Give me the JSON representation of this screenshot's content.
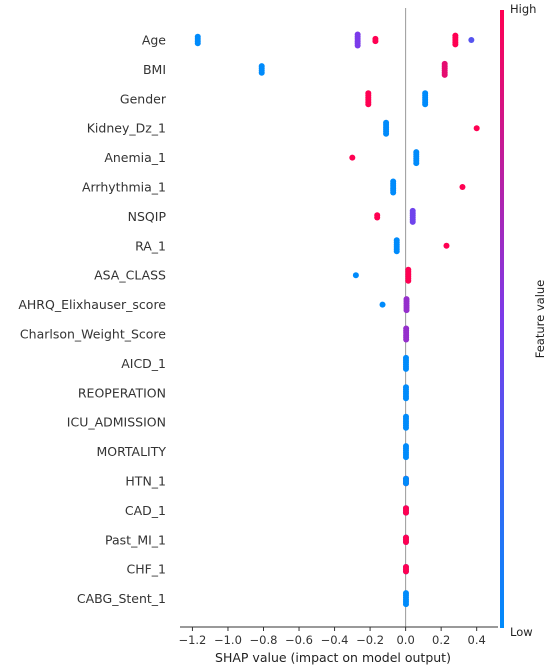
{
  "chart_data": {
    "type": "scatter",
    "xlabel": "SHAP value (impact on model output)",
    "xlim": [
      -1.27,
      0.52
    ],
    "xticks": [
      -1.2,
      -1.0,
      -0.8,
      -0.6,
      -0.4,
      -0.2,
      0.0,
      0.2,
      0.4
    ],
    "xtick_labels": [
      "−1.2",
      "−1.0",
      "−0.8",
      "−0.6",
      "−0.4",
      "−0.2",
      "0.0",
      "0.2",
      "0.4"
    ],
    "colorbar": {
      "label": "Feature value",
      "high": "High",
      "low": "Low",
      "low_color": "#008bfb",
      "mid_color": "#7b3bea",
      "high_color": "#ff0052"
    },
    "zero_line_color": "#999999",
    "features": [
      {
        "name": "Age",
        "points": [
          {
            "x": -1.17,
            "v": 0.0,
            "n": 4
          },
          {
            "x": -0.27,
            "v": 0.5,
            "n": 6
          },
          {
            "x": -0.17,
            "v": 1.0,
            "n": 2
          },
          {
            "x": 0.28,
            "v": 1.0,
            "n": 5
          },
          {
            "x": 0.37,
            "v": 0.35,
            "n": 1
          }
        ]
      },
      {
        "name": "BMI",
        "points": [
          {
            "x": -0.81,
            "v": 0.0,
            "n": 4
          },
          {
            "x": 0.22,
            "v": 0.9,
            "n": 6
          }
        ]
      },
      {
        "name": "Gender",
        "points": [
          {
            "x": -0.21,
            "v": 1.0,
            "n": 6
          },
          {
            "x": 0.11,
            "v": 0.0,
            "n": 6
          }
        ]
      },
      {
        "name": "Kidney_Dz_1",
        "points": [
          {
            "x": -0.11,
            "v": 0.0,
            "n": 6
          },
          {
            "x": 0.4,
            "v": 1.0,
            "n": 1
          }
        ]
      },
      {
        "name": "Anemia_1",
        "points": [
          {
            "x": -0.3,
            "v": 1.0,
            "n": 1
          },
          {
            "x": 0.06,
            "v": 0.0,
            "n": 6
          }
        ]
      },
      {
        "name": "Arrhythmia_1",
        "points": [
          {
            "x": -0.07,
            "v": 0.0,
            "n": 6
          },
          {
            "x": 0.32,
            "v": 1.0,
            "n": 1
          }
        ]
      },
      {
        "name": "NSQIP",
        "points": [
          {
            "x": -0.16,
            "v": 1.0,
            "n": 2
          },
          {
            "x": 0.04,
            "v": 0.45,
            "n": 6
          }
        ]
      },
      {
        "name": "RA_1",
        "points": [
          {
            "x": -0.05,
            "v": 0.0,
            "n": 6
          },
          {
            "x": 0.23,
            "v": 1.0,
            "n": 1
          }
        ]
      },
      {
        "name": "ASA_CLASS",
        "points": [
          {
            "x": -0.28,
            "v": 0.0,
            "n": 1
          },
          {
            "x": 0.015,
            "v": 1.0,
            "n": 6
          }
        ]
      },
      {
        "name": "AHRQ_Elixhauser_score",
        "points": [
          {
            "x": -0.13,
            "v": 0.0,
            "n": 1
          },
          {
            "x": 0.005,
            "v": 0.6,
            "n": 6
          }
        ]
      },
      {
        "name": "Charlson_Weight_Score",
        "points": [
          {
            "x": 0.003,
            "v": 0.6,
            "n": 6
          }
        ]
      },
      {
        "name": "AICD_1",
        "points": [
          {
            "x": 0.002,
            "v": 0.0,
            "n": 6
          }
        ]
      },
      {
        "name": "REOPERATION",
        "points": [
          {
            "x": 0.002,
            "v": 0.0,
            "n": 6
          }
        ]
      },
      {
        "name": "ICU_ADMISSION",
        "points": [
          {
            "x": 0.002,
            "v": 0.0,
            "n": 6
          }
        ]
      },
      {
        "name": "MORTALITY",
        "points": [
          {
            "x": 0.002,
            "v": 0.0,
            "n": 6
          }
        ]
      },
      {
        "name": "HTN_1",
        "points": [
          {
            "x": 0.002,
            "v": 1.0,
            "n": 3
          },
          {
            "x": 0.002,
            "v": 0.0,
            "n": 3
          }
        ]
      },
      {
        "name": "CAD_1",
        "points": [
          {
            "x": 0.002,
            "v": 0.0,
            "n": 3
          },
          {
            "x": 0.002,
            "v": 1.0,
            "n": 3
          }
        ]
      },
      {
        "name": "Past_MI_1",
        "points": [
          {
            "x": 0.002,
            "v": 0.0,
            "n": 3
          },
          {
            "x": 0.002,
            "v": 1.0,
            "n": 3
          }
        ]
      },
      {
        "name": "CHF_1",
        "points": [
          {
            "x": 0.002,
            "v": 0.0,
            "n": 3
          },
          {
            "x": 0.002,
            "v": 1.0,
            "n": 3
          }
        ]
      },
      {
        "name": "CABG_Stent_1",
        "points": [
          {
            "x": 0.002,
            "v": 0.0,
            "n": 6
          }
        ]
      }
    ]
  }
}
